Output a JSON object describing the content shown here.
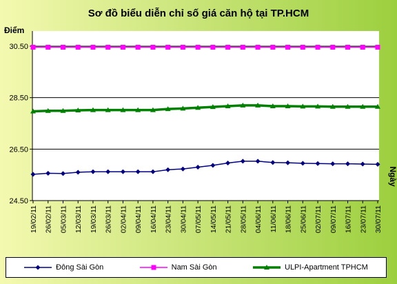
{
  "chart_data": {
    "type": "line",
    "title": "Sơ đồ biểu diễn chỉ số giá căn hộ tại TP.HCM",
    "ylabel": "Điểm",
    "xlabel": "Ngày",
    "ylim": [
      24.5,
      30.5
    ],
    "yticks": [
      "24.50",
      "26.50",
      "28.50",
      "30.50"
    ],
    "ytick_values": [
      24.5,
      26.5,
      28.5,
      30.5
    ],
    "grid": true,
    "legend_position": "bottom",
    "categories": [
      "19/02/11",
      "26/02/11",
      "05/03/11",
      "12/03/11",
      "19/03/11",
      "26/03/11",
      "02/04/11",
      "09/04/11",
      "16/04/11",
      "23/04/11",
      "30/04/11",
      "07/05/11",
      "14/05/11",
      "21/05/11",
      "28/05/11",
      "04/06/11",
      "11/06/11",
      "18/06/11",
      "25/06/11",
      "02/07/11",
      "09/07/11",
      "16/07/11",
      "23/07/11",
      "30/07/11"
    ],
    "series": [
      {
        "name": "Đông Sài Gòn",
        "color": "#000080",
        "marker": "diamond",
        "values": [
          25.52,
          25.56,
          25.55,
          25.6,
          25.62,
          25.62,
          25.62,
          25.62,
          25.62,
          25.7,
          25.73,
          25.8,
          25.87,
          25.96,
          26.03,
          26.03,
          25.98,
          25.97,
          25.95,
          25.94,
          25.93,
          25.93,
          25.92,
          25.91
        ]
      },
      {
        "name": "Nam Sài Gòn",
        "color": "#ff00ff",
        "marker": "square",
        "values": [
          30.46,
          30.46,
          30.46,
          30.46,
          30.46,
          30.46,
          30.46,
          30.46,
          30.46,
          30.46,
          30.46,
          30.46,
          30.46,
          30.46,
          30.46,
          30.46,
          30.46,
          30.46,
          30.46,
          30.46,
          30.46,
          30.46,
          30.46,
          30.46
        ]
      },
      {
        "name": "ULPI-Apartment TPHCM",
        "color": "#008000",
        "marker": "triangle",
        "values": [
          27.97,
          27.99,
          27.99,
          28.01,
          28.02,
          28.02,
          28.02,
          28.02,
          28.02,
          28.06,
          28.08,
          28.11,
          28.14,
          28.17,
          28.2,
          28.2,
          28.17,
          28.17,
          28.16,
          28.16,
          28.15,
          28.15,
          28.15,
          28.15
        ]
      }
    ]
  },
  "style": {
    "background_gradient": [
      "#f4f9b0",
      "#9ccf3e"
    ],
    "plot_background": "#ffffff",
    "grid_color": "#000000",
    "title_color": "#000000",
    "axis_label_color": "#000000"
  }
}
